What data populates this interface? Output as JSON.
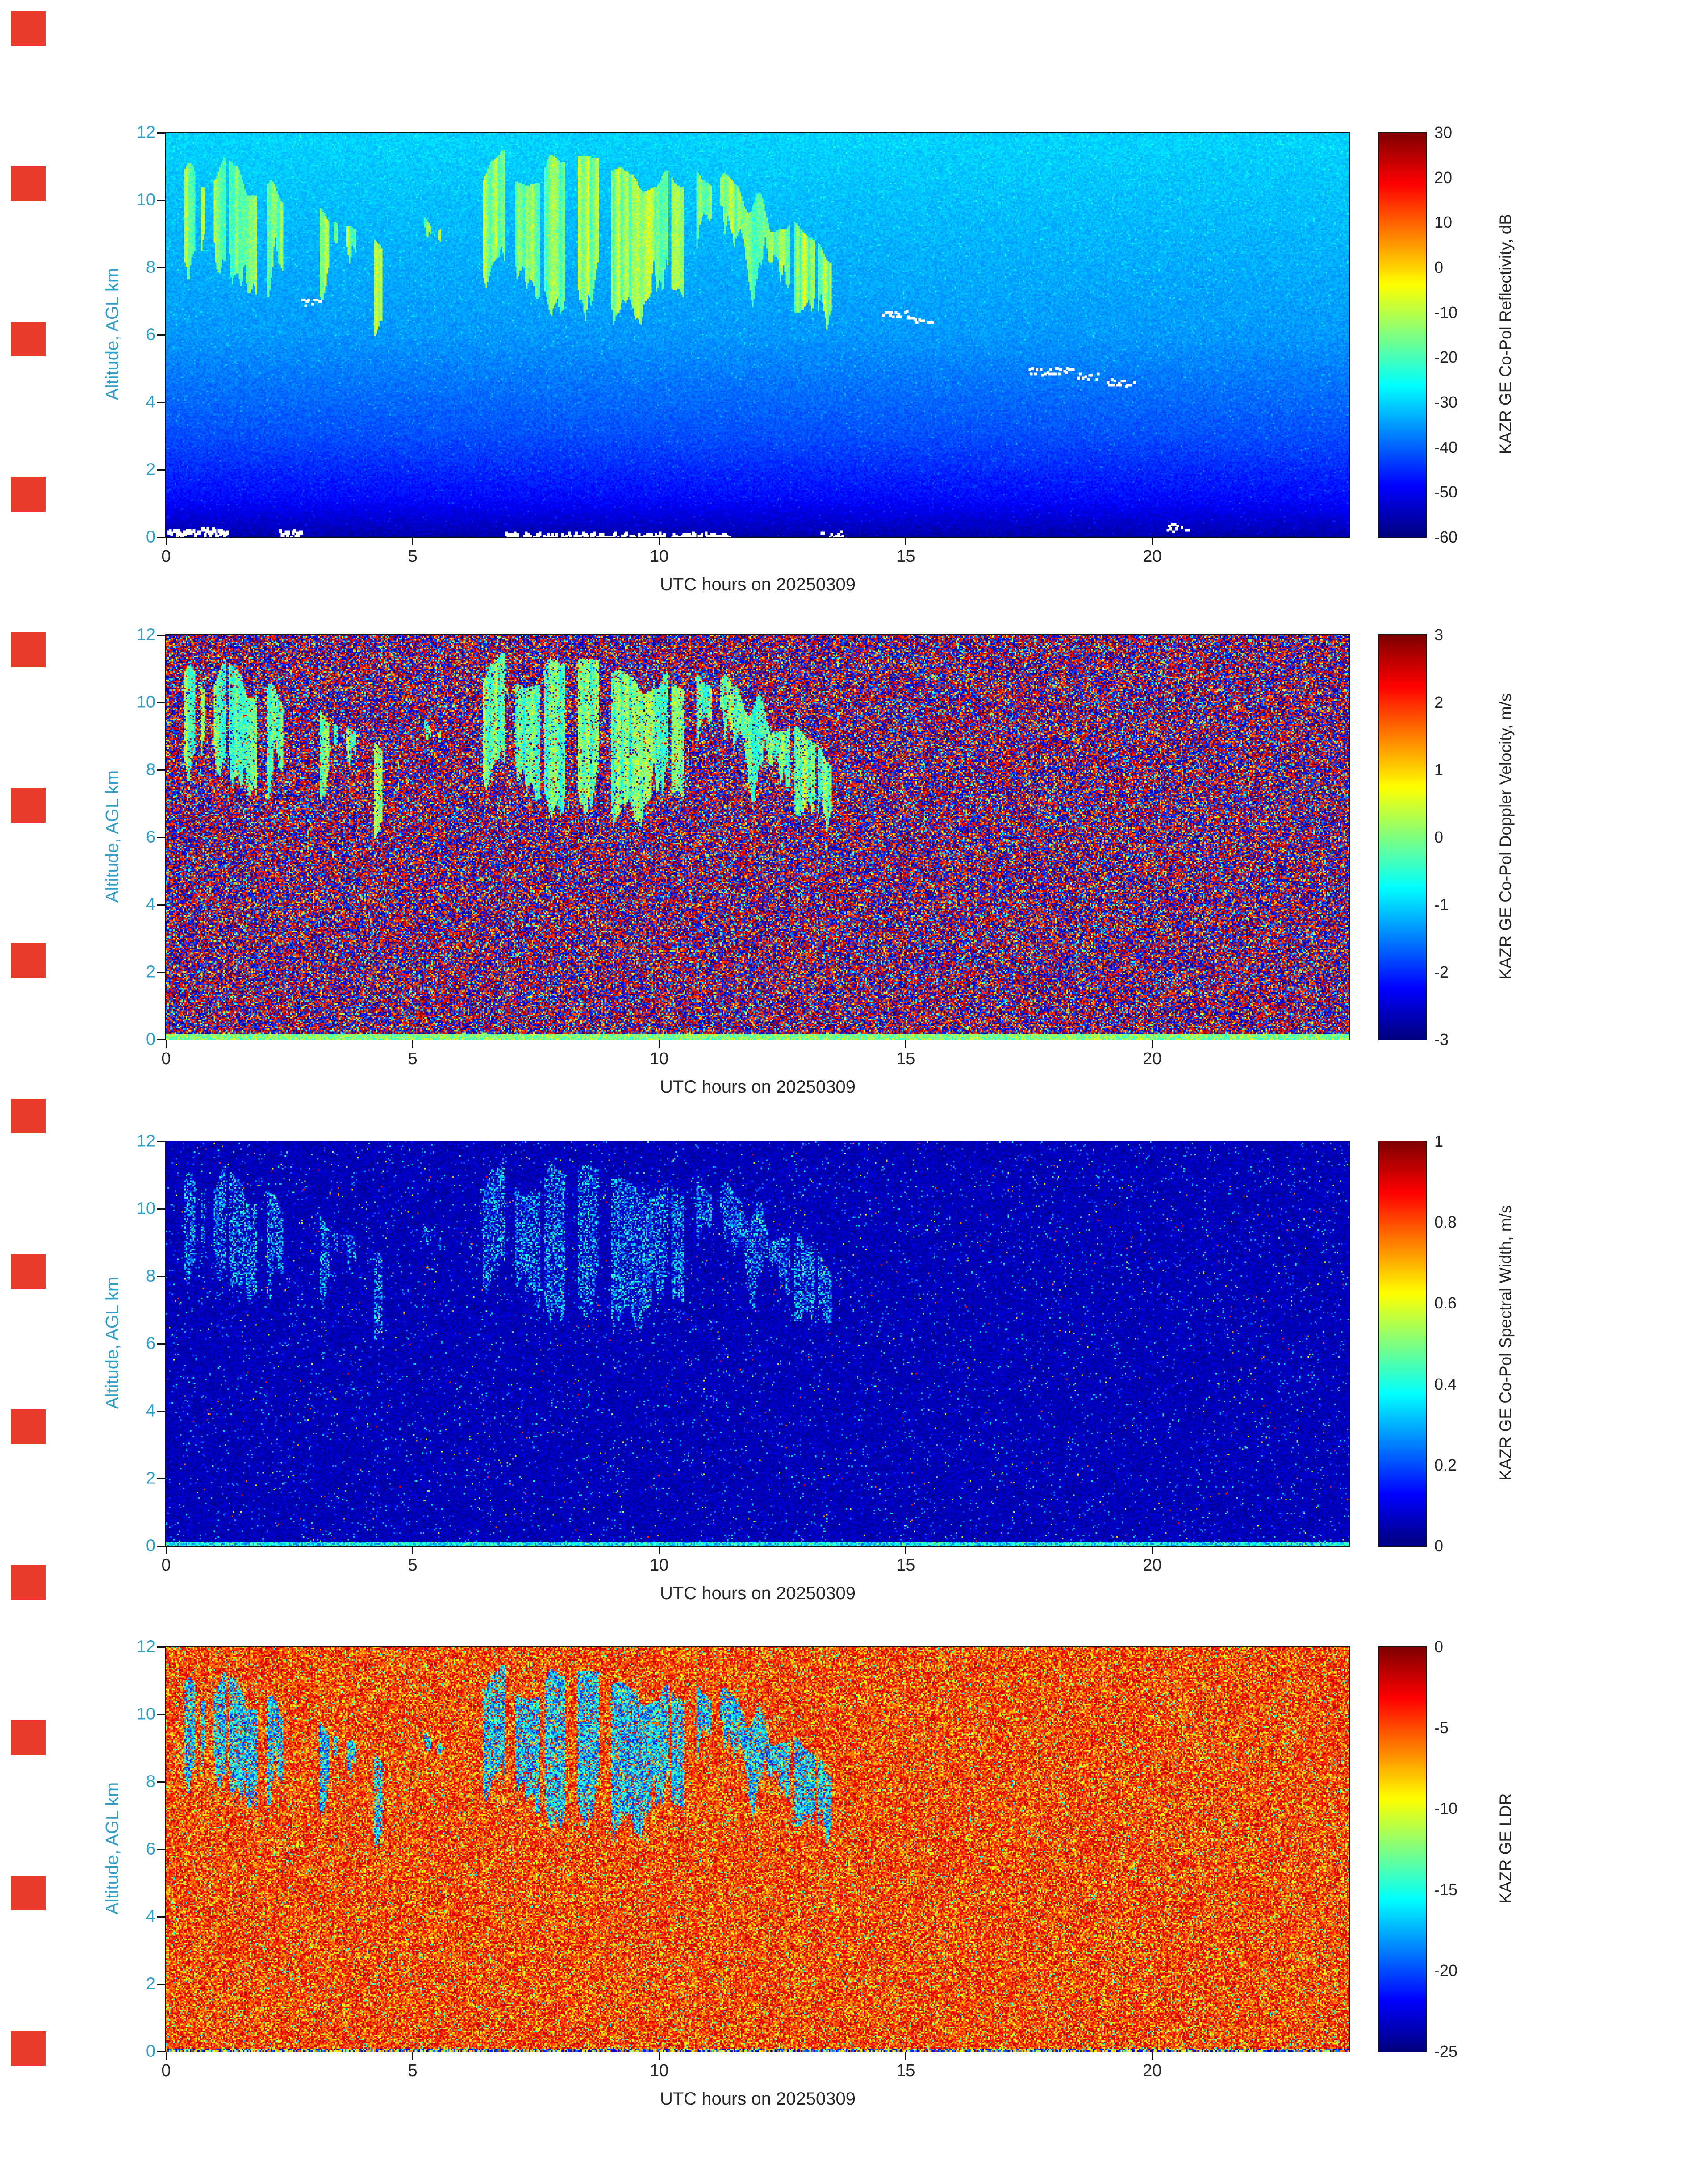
{
  "figure": {
    "background": "#ffffff",
    "artifact_markers": {
      "count": 14,
      "color": "#e8392b",
      "x": 24,
      "y_start": 24,
      "y_step": 348,
      "size": 78
    }
  },
  "axes": {
    "x_label": "UTC hours on 20250309",
    "y_label": "Altitude, AGL km",
    "x_ticks": [
      0,
      5,
      10,
      15,
      20
    ],
    "x_range": [
      0,
      24
    ],
    "y_ticks": [
      0,
      2,
      4,
      6,
      8,
      10,
      12
    ],
    "y_range": [
      0,
      12
    ],
    "y_color": "#2f9ec9",
    "x_color": "#262626"
  },
  "chart_data": [
    {
      "type": "heatmap",
      "panel": "refl",
      "title": "KAZR GE Co-Pol Reflectivity",
      "colorbar_label": "KAZR GE Co-Pol Reflectivity, dB",
      "units": "dB",
      "colormap": "jet",
      "value_range": [
        -60,
        30
      ],
      "colorbar_ticks": [
        30,
        20,
        10,
        0,
        -10,
        -20,
        -30,
        -40,
        -50,
        -60
      ],
      "x_label": "UTC hours on 20250309",
      "y_label": "Altitude, AGL km",
      "background_description": "clear-air signal fading from about -30 dB (cyan) at 12 km to about -56 dB (dark blue) near the surface; cloud echoes -25 to -5 dB (green/yellow) between 7.5 and 11.5 km before 13.5 UTC; white saturated specks near 6.6 km at 14.5-15.5 UTC and near 4.6-5 km at 17.5-19.6 UTC and along the bottom range gates"
    },
    {
      "type": "heatmap",
      "panel": "vel",
      "title": "KAZR GE Co-Pol Doppler Velocity",
      "colorbar_label": "KAZR GE Co-Pol Doppler Velocity, m/s",
      "units": "m/s",
      "colormap": "jet",
      "value_range": [
        -3,
        3
      ],
      "colorbar_ticks": [
        3,
        2,
        1,
        0,
        -1,
        -2,
        -3
      ],
      "x_label": "UTC hours on 20250309",
      "y_label": "Altitude, AGL km",
      "background_description": "uniform aliased noise spanning -3 to +3 m/s (red/blue speckle); coherent cloud velocities near -0.5 to +0.5 m/s (green) in the cloud regions; near-zero velocities in the lowest range gates"
    },
    {
      "type": "heatmap",
      "panel": "sw",
      "title": "KAZR GE Co-Pol Spectral Width",
      "colorbar_label": "KAZR GE Co-Pol Spectral Width, m/s",
      "units": "m/s",
      "colormap": "jet",
      "value_range": [
        0,
        1
      ],
      "colorbar_ticks": [
        1,
        0.8,
        0.6,
        0.4,
        0.2,
        0
      ],
      "x_label": "UTC hours on 20250309",
      "y_label": "Altitude, AGL km",
      "background_description": "mostly near-zero spectral width (dark blue) with sparse speckle; faint 0.2-0.45 m/s (cyan) streaks in the cloud regions; thin enhanced line in the lowest range gates"
    },
    {
      "type": "heatmap",
      "panel": "ldr",
      "title": "KAZR GE LDR",
      "colorbar_label": "KAZR GE LDR",
      "units": "dB",
      "colormap": "jet",
      "value_range": [
        -25,
        0
      ],
      "colorbar_ticks": [
        0,
        -5,
        -10,
        -15,
        -20,
        -25
      ],
      "x_label": "UTC hours on 20250309",
      "y_label": "Altitude, AGL km",
      "background_description": "noise background near -2 to -8 dB (orange/red with yellow flecks); cloud LDR of -12 to -22 dB (cyan/blue patches) in the cloud regions; mixed dark line in the lowest range gates"
    }
  ],
  "features": {
    "clouds": [
      {
        "t0": 0.35,
        "t1": 2.35,
        "zt0": 11.6,
        "zt1": 10.9,
        "zb0": 9.4,
        "zb1": 8.2,
        "density": 0.8
      },
      {
        "t0": 2.6,
        "t1": 4.5,
        "zt0": 11.0,
        "zt1": 9.3,
        "zb0": 8.9,
        "zb1": 7.3,
        "density": 0.52
      },
      {
        "t0": 5.05,
        "t1": 5.8,
        "zt0": 10.2,
        "zt1": 9.9,
        "zb0": 9.0,
        "zb1": 8.7,
        "density": 0.55
      },
      {
        "t0": 6.4,
        "t1": 10.5,
        "zt0": 11.6,
        "zt1": 11.2,
        "zb0": 8.6,
        "zb1": 7.5,
        "density": 0.78
      },
      {
        "t0": 10.75,
        "t1": 13.5,
        "zt0": 11.7,
        "zt1": 8.9,
        "zb0": 9.6,
        "zb1": 7.3,
        "density": 0.82
      }
    ],
    "specks": [
      {
        "t0": 2.75,
        "t1": 3.1,
        "z": 7.0
      },
      {
        "t0": 14.45,
        "t1": 15.05,
        "z": 6.65
      },
      {
        "t0": 15.05,
        "t1": 15.5,
        "z": 6.5
      },
      {
        "t0": 17.5,
        "t1": 18.35,
        "z": 4.95
      },
      {
        "t0": 18.45,
        "t1": 18.85,
        "z": 4.8
      },
      {
        "t0": 19.1,
        "t1": 19.6,
        "z": 4.6
      },
      {
        "t0": 0.05,
        "t1": 1.2,
        "z": 0.2,
        "bold": true
      },
      {
        "t0": 2.3,
        "t1": 2.7,
        "z": 0.15,
        "bold": true
      },
      {
        "t0": 6.9,
        "t1": 11.4,
        "z": 0.07,
        "bold": true
      },
      {
        "t0": 13.3,
        "t1": 13.7,
        "z": 0.1
      },
      {
        "t0": 20.3,
        "t1": 20.7,
        "z": 0.3
      }
    ]
  }
}
